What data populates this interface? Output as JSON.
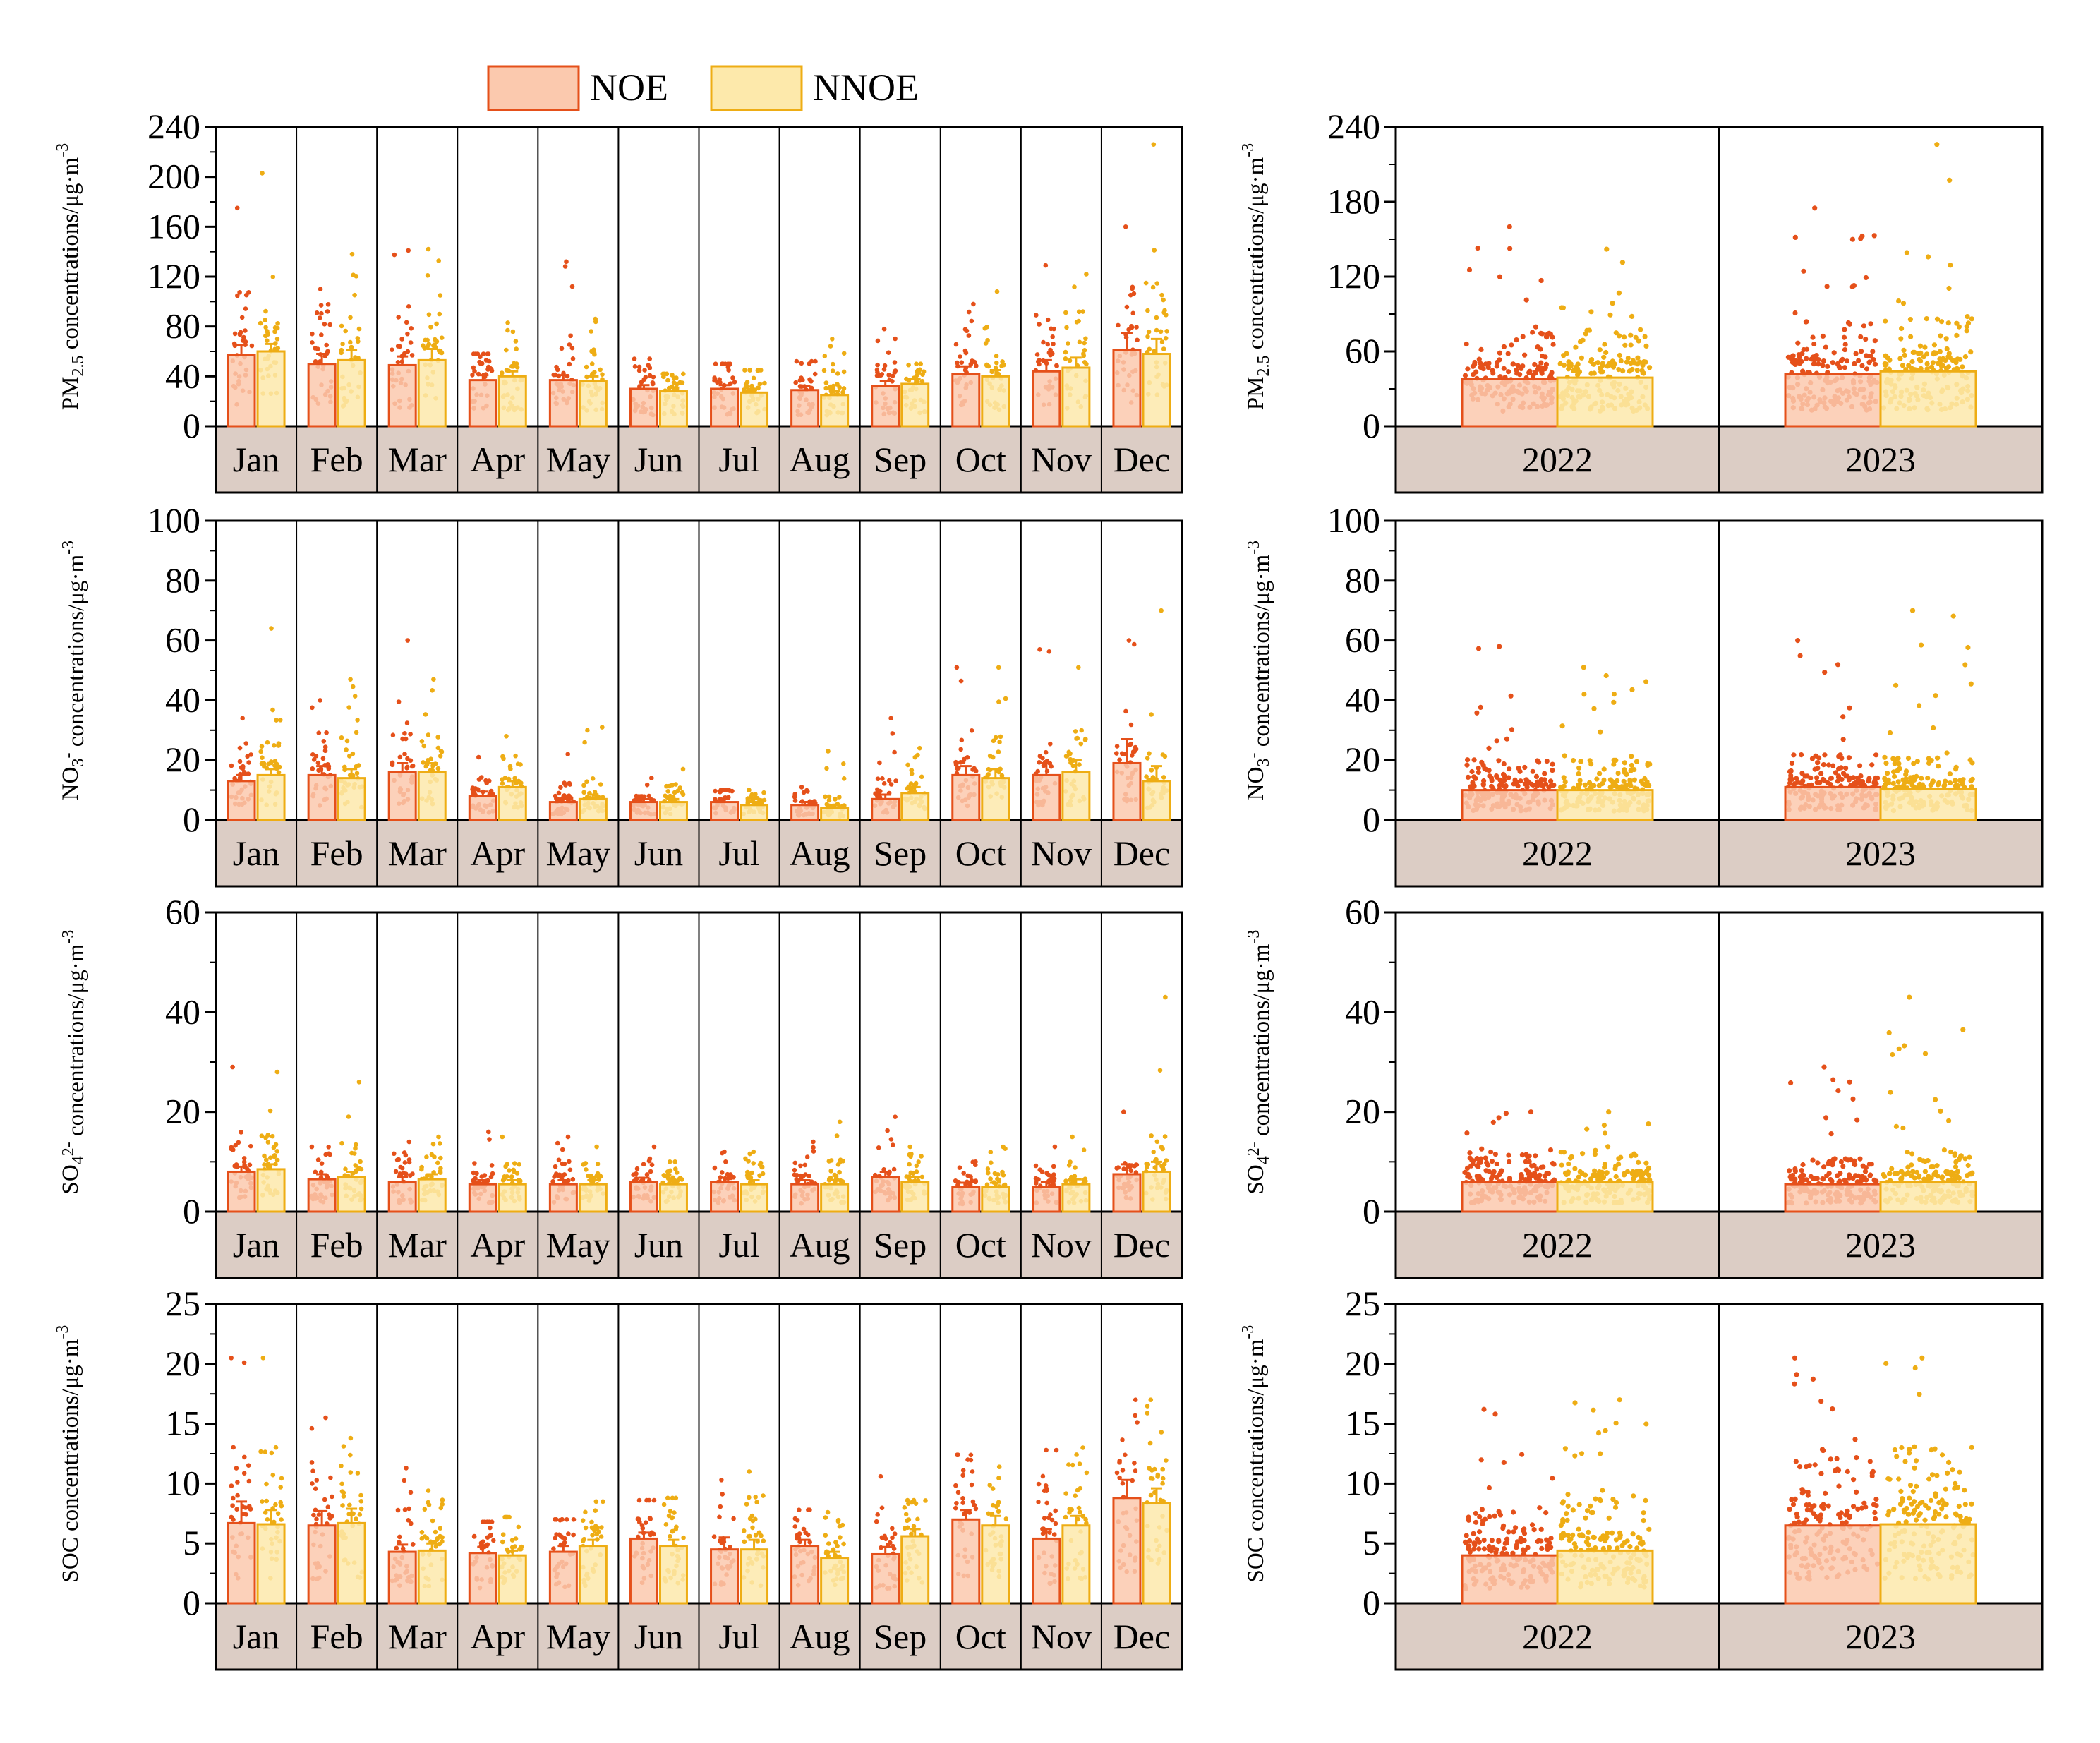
{
  "legend": [
    {
      "name": "NOE",
      "fill": "#fbc9ae",
      "stroke": "#e5501a"
    },
    {
      "name": "NNOE",
      "fill": "#fde9ab",
      "stroke": "#eead14"
    }
  ],
  "colors": {
    "noe_point": "#e5501a",
    "nnoe_point": "#eead14",
    "noe_fill": "#fbc9ae",
    "nnoe_fill": "#fde9ab",
    "category_band": "#dccdc5",
    "axis": "#000000"
  },
  "chart_data": [
    {
      "type": "bar",
      "panel": "PM2.5 monthly",
      "ylabel_parts": [
        "PM",
        "2.5",
        " concentrations/μg·m",
        "-3"
      ],
      "ylim": [
        0,
        240
      ],
      "yticks": [
        0,
        40,
        80,
        120,
        160,
        200,
        240
      ],
      "categories": [
        "Jan",
        "Feb",
        "Mar",
        "Apr",
        "May",
        "Jun",
        "Jul",
        "Aug",
        "Sep",
        "Oct",
        "Nov",
        "Dec"
      ],
      "series": [
        {
          "name": "NOE",
          "values": [
            57,
            50,
            49,
            37,
            37,
            30,
            30,
            29,
            32,
            42,
            44,
            61
          ],
          "error": [
            8,
            8,
            7,
            4,
            4,
            3,
            3,
            3,
            4,
            6,
            9,
            14
          ],
          "max": [
            175,
            110,
            141,
            58,
            132,
            54,
            50,
            52,
            78,
            98,
            129,
            160
          ]
        },
        {
          "name": "NNOE",
          "values": [
            60,
            53,
            53,
            40,
            36,
            28,
            27,
            25,
            34,
            40,
            47,
            58
          ],
          "error": [
            6,
            8,
            9,
            4,
            4,
            3,
            3,
            3,
            4,
            5,
            8,
            12
          ],
          "max": [
            203,
            138,
            142,
            83,
            86,
            42,
            45,
            70,
            50,
            108,
            122,
            226
          ]
        }
      ]
    },
    {
      "type": "bar",
      "panel": "PM2.5 yearly",
      "ylabel_parts": [
        "PM",
        "2.5",
        " concentrations/μg·m",
        "-3"
      ],
      "ylim": [
        0,
        240
      ],
      "yticks": [
        0,
        60,
        120,
        180,
        240
      ],
      "categories": [
        "2022",
        "2023"
      ],
      "series": [
        {
          "name": "NOE",
          "values": [
            38,
            42
          ],
          "max": [
            160,
            175
          ]
        },
        {
          "name": "NNOE",
          "values": [
            39,
            44
          ],
          "max": [
            142,
            226
          ]
        }
      ]
    },
    {
      "type": "bar",
      "panel": "NO3- monthly",
      "ylabel_parts": [
        "NO",
        "3",
        "-",
        " concentrations/μg·m",
        "-3"
      ],
      "ylim": [
        0,
        100
      ],
      "yticks": [
        0,
        20,
        40,
        60,
        80,
        100
      ],
      "categories": [
        "Jan",
        "Feb",
        "Mar",
        "Apr",
        "May",
        "Jun",
        "Jul",
        "Aug",
        "Sep",
        "Oct",
        "Nov",
        "Dec"
      ],
      "series": [
        {
          "name": "NOE",
          "values": [
            13,
            15,
            16,
            8,
            6,
            6,
            6,
            5,
            7,
            15,
            15,
            19
          ],
          "error": [
            2,
            3,
            3,
            1.5,
            1,
            1,
            1,
            1,
            1.5,
            3,
            4,
            8
          ],
          "max": [
            34,
            40,
            60,
            21,
            22,
            14,
            10,
            11,
            34,
            51,
            57,
            60
          ]
        },
        {
          "name": "NNOE",
          "values": [
            15,
            14,
            16,
            11,
            7,
            6,
            5,
            4,
            9,
            14,
            16,
            13
          ],
          "error": [
            2,
            3,
            3,
            2,
            1.5,
            1,
            1,
            1,
            2,
            3,
            4,
            5
          ],
          "max": [
            64,
            47,
            47,
            28,
            31,
            17,
            10,
            23,
            24,
            51,
            51,
            70
          ]
        }
      ]
    },
    {
      "type": "bar",
      "panel": "NO3- yearly",
      "ylabel_parts": [
        "NO",
        "3",
        "-",
        " concentrations/μg·m",
        "-3"
      ],
      "ylim": [
        0,
        100
      ],
      "yticks": [
        0,
        20,
        40,
        60,
        80,
        100
      ],
      "categories": [
        "2022",
        "2023"
      ],
      "series": [
        {
          "name": "NOE",
          "values": [
            10,
            11
          ],
          "max": [
            58,
            60
          ]
        },
        {
          "name": "NNOE",
          "values": [
            10,
            10.5
          ],
          "max": [
            51,
            70
          ]
        }
      ]
    },
    {
      "type": "bar",
      "panel": "SO42- monthly",
      "ylabel_parts": [
        "SO",
        "4",
        "2-",
        " concentrations/μg·m",
        "-3"
      ],
      "ylim": [
        0,
        60
      ],
      "yticks": [
        0,
        20,
        40,
        60
      ],
      "categories": [
        "Jan",
        "Feb",
        "Mar",
        "Apr",
        "May",
        "Jun",
        "Jul",
        "Aug",
        "Sep",
        "Oct",
        "Nov",
        "Dec"
      ],
      "series": [
        {
          "name": "NOE",
          "values": [
            8,
            6.5,
            6,
            5.5,
            5.5,
            6,
            6,
            5.5,
            7,
            5,
            5,
            7.5
          ],
          "error": [
            1,
            1,
            1,
            0.8,
            0.8,
            0.8,
            0.8,
            0.8,
            1,
            0.8,
            1,
            2
          ],
          "max": [
            29,
            13,
            14,
            16,
            15,
            13,
            12,
            14,
            19,
            10,
            13,
            20
          ]
        },
        {
          "name": "NNOE",
          "values": [
            8.5,
            7,
            6.5,
            5.5,
            5.5,
            5.5,
            5.5,
            5.5,
            6,
            5,
            5.5,
            8
          ],
          "error": [
            1,
            1,
            1,
            0.8,
            0.8,
            0.8,
            0.8,
            0.8,
            1,
            0.8,
            1,
            2
          ],
          "max": [
            28,
            26,
            15,
            15,
            13,
            10,
            12,
            18,
            13,
            13,
            15,
            43
          ]
        }
      ]
    },
    {
      "type": "bar",
      "panel": "SO42- yearly",
      "ylabel_parts": [
        "SO",
        "4",
        "2-",
        " concentrations/μg·m",
        "-3"
      ],
      "ylim": [
        0,
        60
      ],
      "yticks": [
        0,
        20,
        40,
        60
      ],
      "categories": [
        "2022",
        "2023"
      ],
      "series": [
        {
          "name": "NOE",
          "values": [
            6,
            5.5
          ],
          "max": [
            20,
            29
          ]
        },
        {
          "name": "NNOE",
          "values": [
            6,
            6
          ],
          "max": [
            20,
            43
          ]
        }
      ]
    },
    {
      "type": "bar",
      "panel": "SOC monthly",
      "ylabel_parts": [
        "SOC concentrations/μg·m",
        "-3"
      ],
      "ylim": [
        0,
        25
      ],
      "yticks": [
        0,
        5,
        10,
        15,
        20,
        25
      ],
      "categories": [
        "Jan",
        "Feb",
        "Mar",
        "Apr",
        "May",
        "Jun",
        "Jul",
        "Aug",
        "Sep",
        "Oct",
        "Nov",
        "Dec"
      ],
      "series": [
        {
          "name": "NOE",
          "values": [
            6.7,
            6.5,
            4.3,
            4.2,
            4.3,
            5.4,
            4.5,
            4.8,
            4.1,
            7,
            5.4,
            8.8
          ],
          "error": [
            1.8,
            1.2,
            0.6,
            0.5,
            0.5,
            0.5,
            1,
            0.5,
            0.6,
            0.8,
            0.8,
            1.5
          ],
          "max": [
            20.5,
            15.5,
            11.3,
            6.8,
            7,
            8.6,
            10.3,
            7.8,
            10.6,
            12.4,
            12.8,
            17
          ]
        },
        {
          "name": "NNOE",
          "values": [
            6.6,
            6.7,
            4.4,
            4,
            4.8,
            4.8,
            4.5,
            3.8,
            5.6,
            6.5,
            6.5,
            8.4
          ],
          "error": [
            1.2,
            1.2,
            0.6,
            0.4,
            0.5,
            0.5,
            0.8,
            0.5,
            0.6,
            0.8,
            0.8,
            1.2
          ],
          "max": [
            20.5,
            13.8,
            9.4,
            7.2,
            8.5,
            8.8,
            11,
            7.6,
            8.6,
            11.4,
            13,
            17
          ]
        }
      ]
    },
    {
      "type": "bar",
      "panel": "SOC yearly",
      "ylabel_parts": [
        "SOC concentrations/μg·m",
        "-3"
      ],
      "ylim": [
        0,
        25
      ],
      "yticks": [
        0,
        5,
        10,
        15,
        20,
        25
      ],
      "categories": [
        "2022",
        "2023"
      ],
      "series": [
        {
          "name": "NOE",
          "values": [
            4,
            6.5
          ],
          "max": [
            16.2,
            20.5
          ]
        },
        {
          "name": "NNOE",
          "values": [
            4.4,
            6.6
          ],
          "max": [
            17,
            20.5
          ]
        }
      ]
    }
  ]
}
